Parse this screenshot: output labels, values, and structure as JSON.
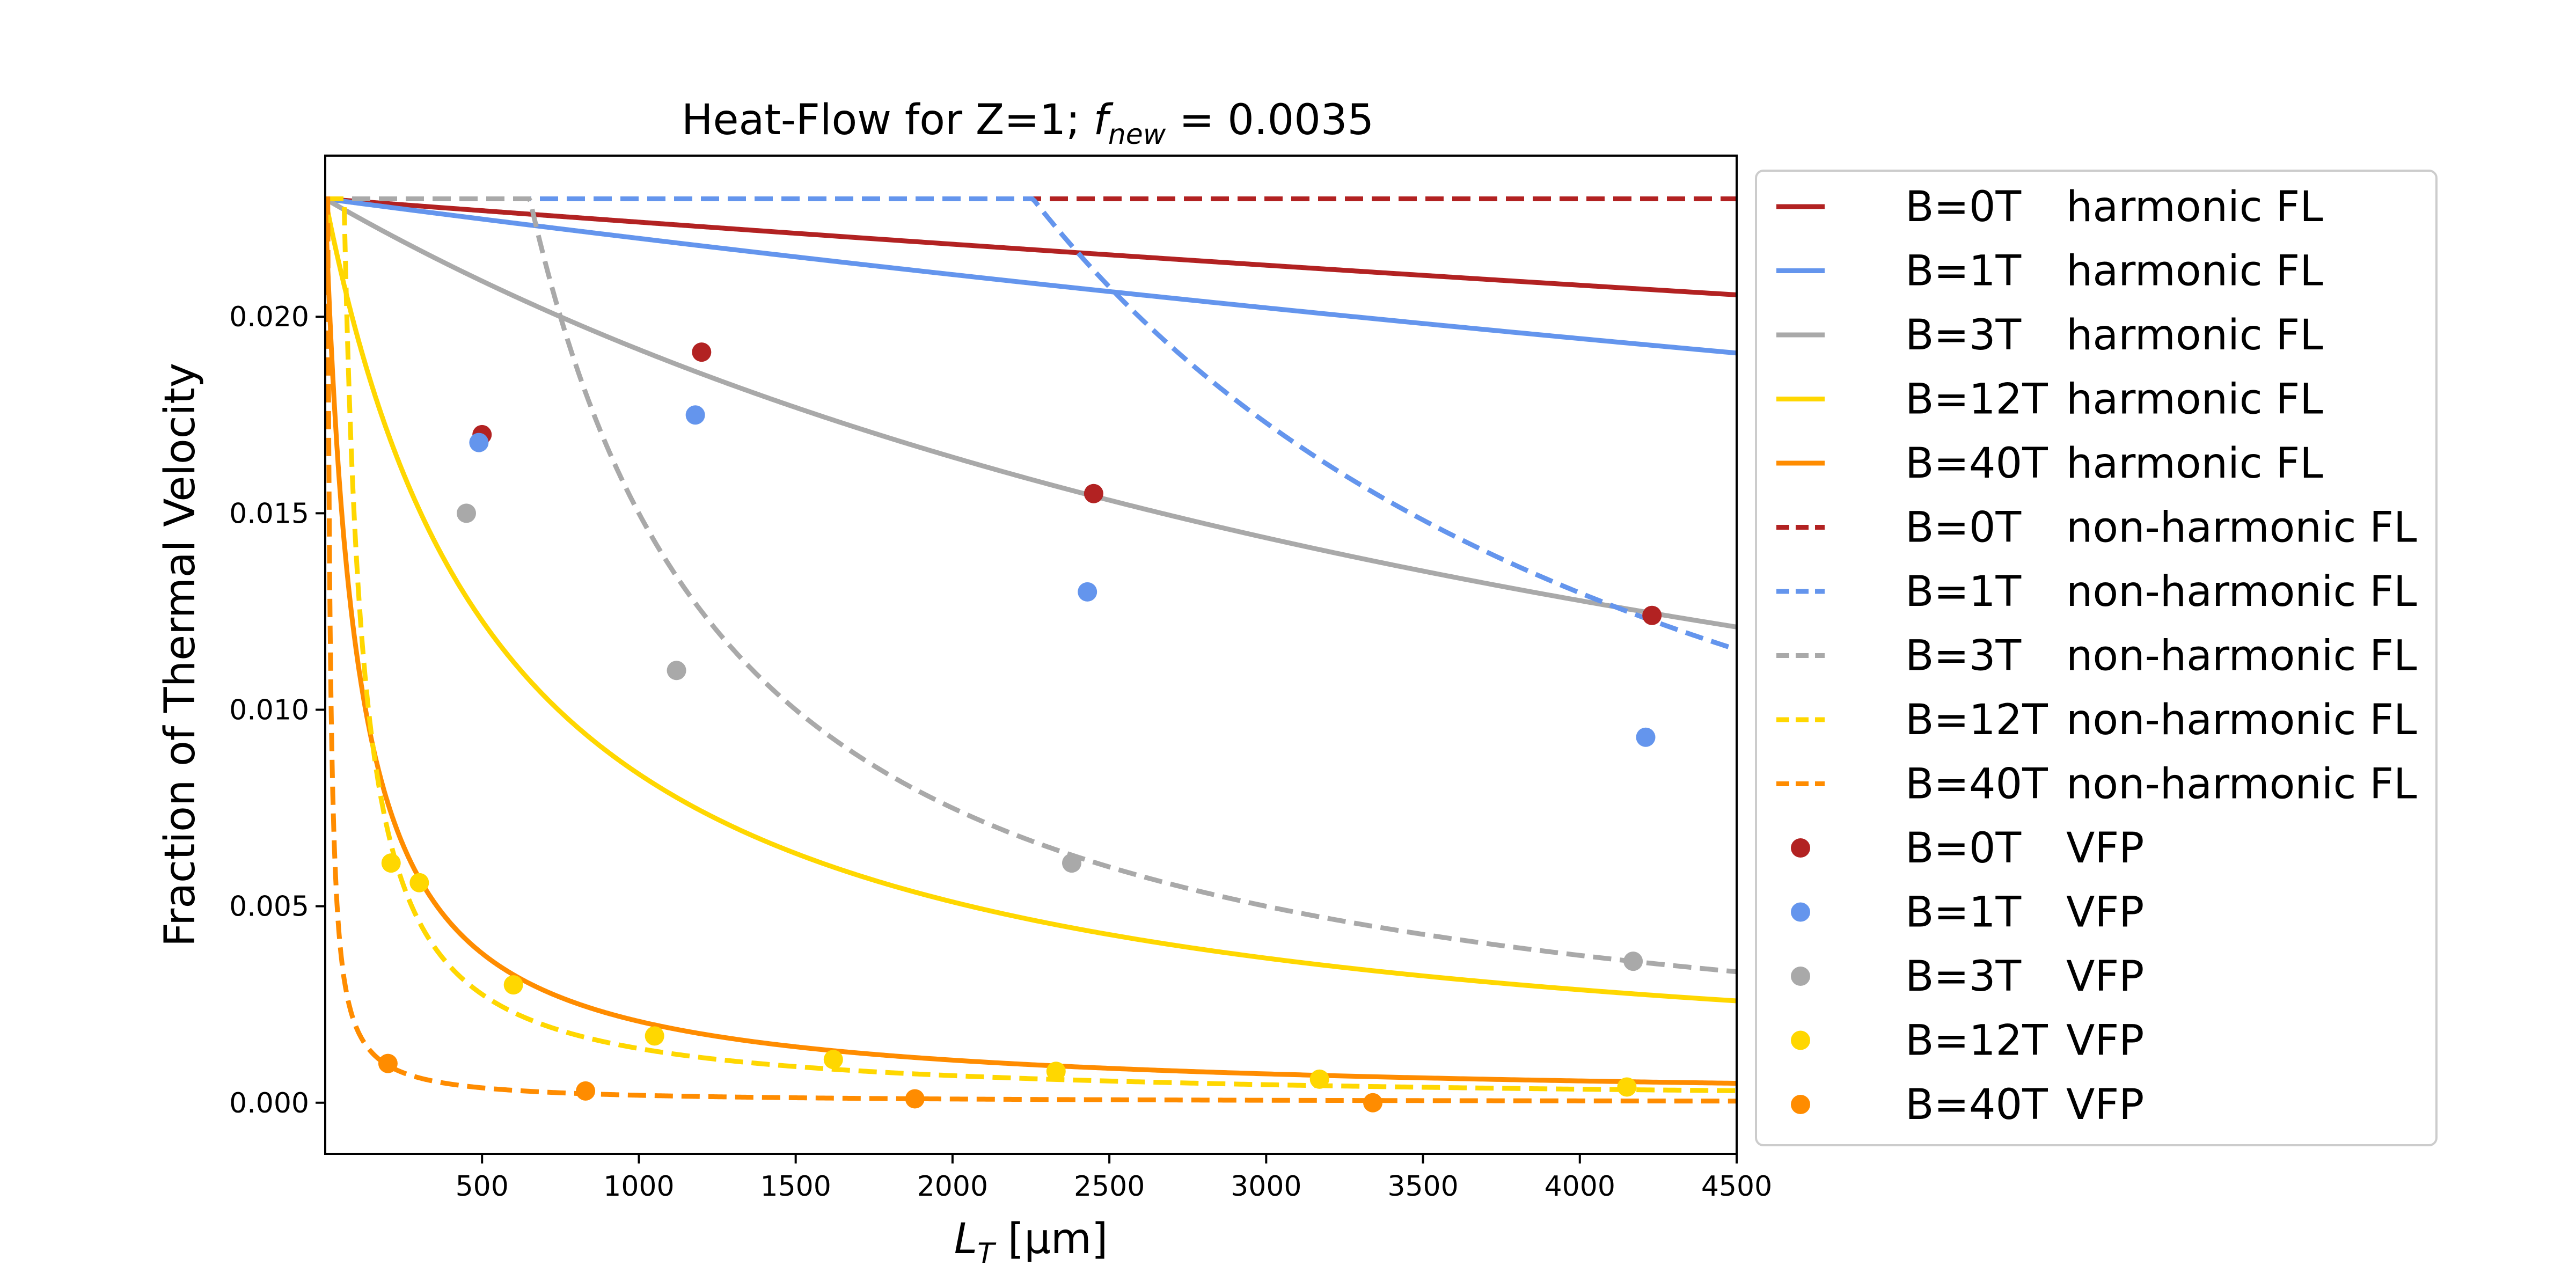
{
  "chart_data": {
    "type": "line",
    "title": {
      "main": "Heat-Flow for Z=1; ",
      "f_symbol": "f",
      "f_subscript": "new",
      "f_value": " = 0.0035"
    },
    "xlabel": {
      "symbol": "L",
      "subscript": "T",
      "unit": " [μm]"
    },
    "ylabel": "Fraction of Thermal Velocity",
    "xlim": [
      0,
      4500
    ],
    "ylim": [
      -0.0013,
      0.0241
    ],
    "x_ticks": [
      "500",
      "1000",
      "1500",
      "2000",
      "2500",
      "3000",
      "3500",
      "4000",
      "4500"
    ],
    "y_ticks": [
      "0.000",
      "0.005",
      "0.010",
      "0.015",
      "0.020"
    ],
    "legend_position": "outside-right",
    "colors": {
      "B=0T": "#b22222",
      "B=1T": "#6495ed",
      "B=3T": "#a9a9a9",
      "B=12T": "#ffd700",
      "B=40T": "#ff8c00"
    },
    "y_max_value": 0.023,
    "harmonic_curves": [
      {
        "name": "B=0T",
        "color": "#b22222",
        "c": 2.64e-05
      },
      {
        "name": "B=1T",
        "color": "#6495ed",
        "c": 4.57e-05
      },
      {
        "name": "B=3T",
        "color": "#a9a9a9",
        "c": 0.0002
      },
      {
        "name": "B=12T",
        "color": "#ffd700",
        "c": 0.00175
      },
      {
        "name": "B=40T",
        "color": "#ff8c00",
        "c": 0.0101
      }
    ],
    "nonharmonic_curves": [
      {
        "name": "B=0T",
        "color": "#b22222",
        "k": 999999
      },
      {
        "name": "B=1T",
        "color": "#6495ed",
        "k": 51.9
      },
      {
        "name": "B=3T",
        "color": "#a9a9a9",
        "k": 15.0
      },
      {
        "name": "B=12T",
        "color": "#ffd700",
        "k": 1.38
      },
      {
        "name": "B=40T",
        "color": "#ff8c00",
        "k": 0.19
      }
    ],
    "vfp_points": [
      {
        "name": "B=0T",
        "color": "#b22222",
        "x": [
          500,
          1200,
          2450,
          4230
        ],
        "y": [
          0.017,
          0.0191,
          0.0155,
          0.0124
        ]
      },
      {
        "name": "B=1T",
        "color": "#6495ed",
        "x": [
          490,
          1180,
          2430,
          4210
        ],
        "y": [
          0.0168,
          0.0175,
          0.013,
          0.0093
        ]
      },
      {
        "name": "B=3T",
        "color": "#a9a9a9",
        "x": [
          450,
          1120,
          2380,
          4170
        ],
        "y": [
          0.015,
          0.011,
          0.0061,
          0.0036
        ]
      },
      {
        "name": "B=12T",
        "color": "#ffd700",
        "x": [
          210,
          300,
          600,
          1050,
          1620,
          2330,
          3170,
          4150
        ],
        "y": [
          0.0061,
          0.0056,
          0.003,
          0.0017,
          0.0011,
          0.0008,
          0.0006,
          0.0004
        ]
      },
      {
        "name": "B=40T",
        "color": "#ff8c00",
        "x": [
          200,
          830,
          1880,
          3340
        ],
        "y": [
          0.001,
          0.0003,
          0.0001,
          0.0
        ]
      }
    ],
    "legend": [
      {
        "b": "B=0T",
        "kind": "harmonic FL",
        "style": "solid",
        "color": "#b22222"
      },
      {
        "b": "B=1T",
        "kind": "harmonic FL",
        "style": "solid",
        "color": "#6495ed"
      },
      {
        "b": "B=3T",
        "kind": "harmonic FL",
        "style": "solid",
        "color": "#a9a9a9"
      },
      {
        "b": "B=12T",
        "kind": "harmonic FL",
        "style": "solid",
        "color": "#ffd700"
      },
      {
        "b": "B=40T",
        "kind": "harmonic FL",
        "style": "solid",
        "color": "#ff8c00"
      },
      {
        "b": "B=0T",
        "kind": "non-harmonic FL",
        "style": "dashed",
        "color": "#b22222"
      },
      {
        "b": "B=1T",
        "kind": "non-harmonic FL",
        "style": "dashed",
        "color": "#6495ed"
      },
      {
        "b": "B=3T",
        "kind": "non-harmonic FL",
        "style": "dashed",
        "color": "#a9a9a9"
      },
      {
        "b": "B=12T",
        "kind": "non-harmonic FL",
        "style": "dashed",
        "color": "#ffd700"
      },
      {
        "b": "B=40T",
        "kind": "non-harmonic FL",
        "style": "dashed",
        "color": "#ff8c00"
      },
      {
        "b": "B=0T",
        "kind": "VFP",
        "style": "marker",
        "color": "#b22222"
      },
      {
        "b": "B=1T",
        "kind": "VFP",
        "style": "marker",
        "color": "#6495ed"
      },
      {
        "b": "B=3T",
        "kind": "VFP",
        "style": "marker",
        "color": "#a9a9a9"
      },
      {
        "b": "B=12T",
        "kind": "VFP",
        "style": "marker",
        "color": "#ffd700"
      },
      {
        "b": "B=40T",
        "kind": "VFP",
        "style": "marker",
        "color": "#ff8c00"
      }
    ]
  }
}
